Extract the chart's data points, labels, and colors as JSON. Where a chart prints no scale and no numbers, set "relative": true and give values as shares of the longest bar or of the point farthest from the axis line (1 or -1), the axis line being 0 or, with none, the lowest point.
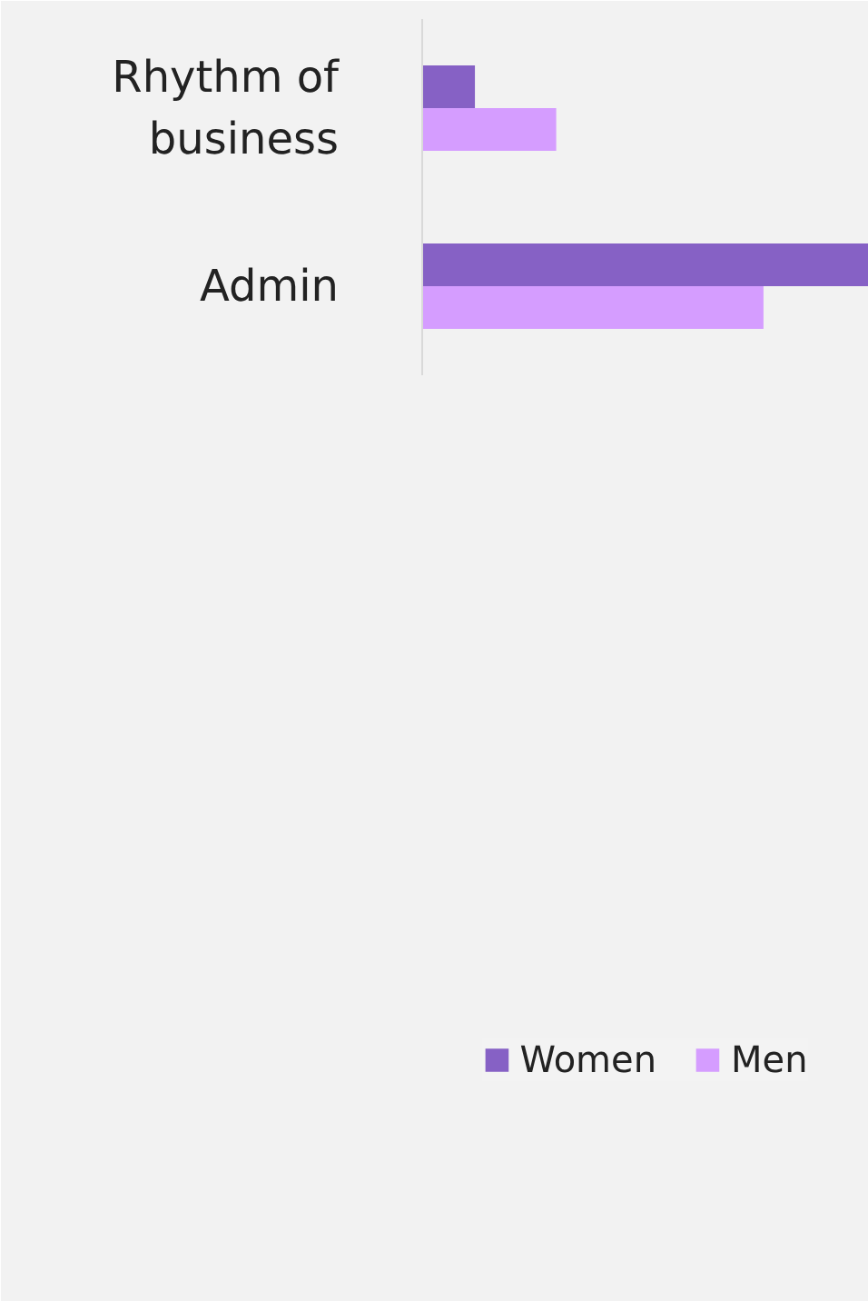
{
  "chart_data": {
    "type": "bar",
    "orientation": "horizontal",
    "relative": true,
    "categories": [
      "Rhythm of business",
      "Admin"
    ],
    "series": [
      {
        "name": "Women",
        "color": "#8661c5",
        "values": [
          0.118,
          1
        ]
      },
      {
        "name": "Men",
        "color": "#d59dff",
        "values": [
          0.3,
          0.764
        ]
      }
    ],
    "legend": "bottom",
    "grid": false
  }
}
